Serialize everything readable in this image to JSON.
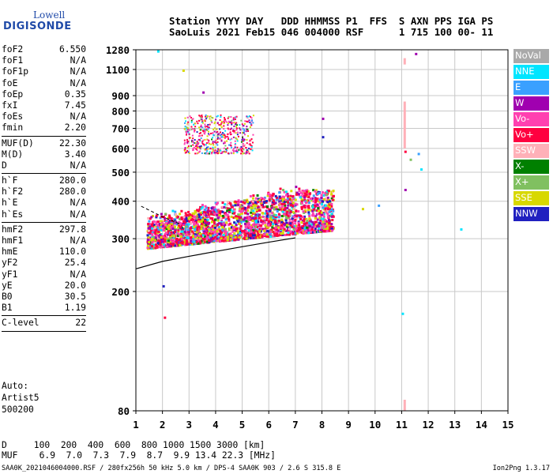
{
  "logo": {
    "top": "Lowell",
    "bottom": "DIGISONDE"
  },
  "header": {
    "row1": "Station YYYY DAY   DDD HHMMSS P1  FFS  S AXN PPS IGA PS",
    "row2": "SaoLuis 2021 Feb15 046 004000 RSF      1 715 100 00- 11"
  },
  "params": {
    "group1": [
      {
        "k": "foF2",
        "v": "6.550"
      },
      {
        "k": "foF1",
        "v": "N/A"
      },
      {
        "k": "foF1p",
        "v": "N/A"
      },
      {
        "k": "foE",
        "v": "N/A"
      },
      {
        "k": "foEp",
        "v": "0.35"
      },
      {
        "k": "fxI",
        "v": "7.45"
      },
      {
        "k": "foEs",
        "v": "N/A"
      },
      {
        "k": "fmin",
        "v": "2.20"
      }
    ],
    "group2": [
      {
        "k": "MUF(D)",
        "v": "22.30"
      },
      {
        "k": "M(D)",
        "v": "3.40"
      },
      {
        "k": "D",
        "v": "N/A"
      }
    ],
    "group3": [
      {
        "k": "h`F",
        "v": "280.0"
      },
      {
        "k": "h`F2",
        "v": "280.0"
      },
      {
        "k": "h`E",
        "v": "N/A"
      },
      {
        "k": "h`Es",
        "v": "N/A"
      }
    ],
    "group4": [
      {
        "k": "hmF2",
        "v": "297.8"
      },
      {
        "k": "hmF1",
        "v": "N/A"
      },
      {
        "k": "hmE",
        "v": "110.0"
      },
      {
        "k": "yF2",
        "v": "25.4"
      },
      {
        "k": "yF1",
        "v": "N/A"
      },
      {
        "k": "yE",
        "v": "20.0"
      },
      {
        "k": "B0",
        "v": "30.5"
      },
      {
        "k": "B1",
        "v": "1.19"
      }
    ],
    "group5": [
      {
        "k": "C-level",
        "v": "22"
      }
    ]
  },
  "auto": {
    "line1": "Auto:",
    "line2": "Artist5",
    "line3": "500200"
  },
  "legend": [
    {
      "label": "NoVal",
      "color": "#a9a9a9"
    },
    {
      "label": "NNE",
      "color": "#00e5ff"
    },
    {
      "label": "E",
      "color": "#3aa0ff"
    },
    {
      "label": "W",
      "color": "#a000b0"
    },
    {
      "label": "Vo-",
      "color": "#ff40b0"
    },
    {
      "label": "Vo+",
      "color": "#ff0040"
    },
    {
      "label": "SSW",
      "color": "#ffb0b8"
    },
    {
      "label": "X-",
      "color": "#008000"
    },
    {
      "label": "X+",
      "color": "#80c060"
    },
    {
      "label": "SSE",
      "color": "#d8d800"
    },
    {
      "label": "NNW",
      "color": "#2020c0"
    }
  ],
  "chart_data": {
    "type": "scatter",
    "title": "",
    "xlabel": "",
    "ylabel": "",
    "xlim": [
      1,
      15
    ],
    "ylim": [
      80,
      1280
    ],
    "yscale": "log",
    "x_ticks": [
      1,
      2,
      3,
      4,
      5,
      6,
      7,
      8,
      9,
      10,
      11,
      12,
      13,
      14,
      15
    ],
    "y_ticks": [
      80,
      200,
      300,
      400,
      500,
      600,
      700,
      800,
      900,
      1100,
      1280
    ],
    "grid": true,
    "echo_regions": [
      {
        "desc": "F2 lower trace",
        "x_range": [
          1.4,
          8.4
        ],
        "y_range": [
          280,
          440
        ]
      },
      {
        "desc": "multiple hop",
        "x_range": [
          2.8,
          5.4
        ],
        "y_range": [
          580,
          780
        ]
      }
    ],
    "profile_curve": {
      "x": [
        1.0,
        2.0,
        3.0,
        4.0,
        5.0,
        6.0,
        7.0
      ],
      "y": [
        238,
        252,
        262,
        272,
        282,
        292,
        302
      ]
    },
    "profile_curve_dashed": {
      "x": [
        1.2,
        2.0,
        2.7
      ],
      "y": [
        385,
        355,
        335
      ]
    },
    "scattered_points": [
      {
        "x": 1.8,
        "y": 1275,
        "color": "#00e5ff"
      },
      {
        "x": 11.5,
        "y": 1250,
        "color": "#a000b0"
      },
      {
        "x": 2.75,
        "y": 1100,
        "color": "#d8d800"
      },
      {
        "x": 3.5,
        "y": 930,
        "color": "#a000b0"
      },
      {
        "x": 8.0,
        "y": 760,
        "color": "#a000b0"
      },
      {
        "x": 8.0,
        "y": 660,
        "color": "#2020c0"
      },
      {
        "x": 11.1,
        "y": 590,
        "color": "#ff0040"
      },
      {
        "x": 11.6,
        "y": 580,
        "color": "#3aa0ff"
      },
      {
        "x": 11.3,
        "y": 555,
        "color": "#80c060"
      },
      {
        "x": 11.7,
        "y": 515,
        "color": "#00e5ff"
      },
      {
        "x": 11.1,
        "y": 440,
        "color": "#a000b0"
      },
      {
        "x": 13.2,
        "y": 325,
        "color": "#00e5ff"
      },
      {
        "x": 2.0,
        "y": 210,
        "color": "#2020c0"
      },
      {
        "x": 2.05,
        "y": 165,
        "color": "#ff0040"
      },
      {
        "x": 11.0,
        "y": 170,
        "color": "#00e5ff"
      },
      {
        "x": 10.1,
        "y": 390,
        "color": "#3aa0ff"
      },
      {
        "x": 9.5,
        "y": 380,
        "color": "#d8d800"
      }
    ],
    "vertical_streak": {
      "x": 11.1,
      "y_range": [
        600,
        860
      ],
      "color": "#ffb0b8"
    }
  },
  "bottom": {
    "d_row": "D     100  200  400  600  800 1000 1500 3000 [km]",
    "muf_row": "MUF    6.9  7.0  7.3  7.9  8.7  9.9 13.4 22.3 [MHz]"
  },
  "footer": "SAA0K_2021046004000.RSF / 280fx256h 50 kHz 5.0 km / DPS-4 SAA0K 903 / 2.6 S 315.8 E",
  "version": "Ion2Png 1.3.17"
}
